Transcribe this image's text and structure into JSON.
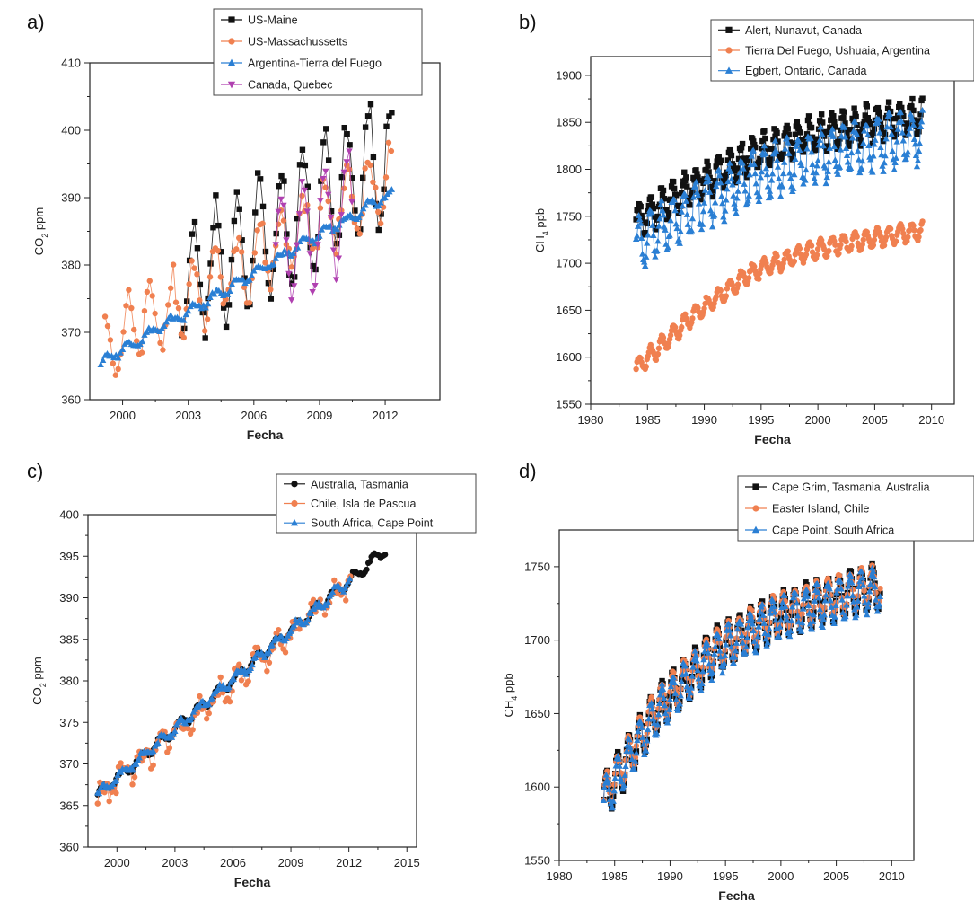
{
  "chart_data": [
    {
      "panel_label": "a)",
      "type": "line",
      "title": "",
      "xlabel": "Fecha",
      "ylabel_main": "CO",
      "ylabel_sub": "2",
      "ylabel_rest": " ppm",
      "xlim": [
        1998.5,
        2014.5
      ],
      "ylim": [
        360,
        410
      ],
      "xticks": [
        2000,
        2003,
        2006,
        2009,
        2012
      ],
      "xtick_labels": [
        "2000",
        "2003",
        "2006",
        "2009",
        "2012"
      ],
      "yticks": [
        360,
        370,
        380,
        390,
        400,
        410
      ],
      "ytick_labels": [
        "360",
        "370",
        "380",
        "390",
        "400",
        "410"
      ],
      "grid": false,
      "legend": "top-right",
      "series": [
        {
          "name": "US-Maine",
          "color": "#111111",
          "marker": "square",
          "start": 2002.7,
          "end": 2012.3,
          "step": 0.12,
          "base": 377,
          "slope": 2.0,
          "amp": 9,
          "noise": 2.2
        },
        {
          "name": "US-Massachussetts",
          "color": "#f08050",
          "marker": "circle",
          "start": 1999.2,
          "end": 2012.3,
          "step": 0.12,
          "base": 368,
          "slope": 1.9,
          "amp": 4.8,
          "noise": 1.8
        },
        {
          "name": "Argentina-Tierra del Fuego",
          "color": "#2a7fd4",
          "marker": "triangle",
          "start": 1999.0,
          "end": 2012.3,
          "step": 0.1,
          "base": 365.5,
          "slope": 1.9,
          "amp": 0.6,
          "noise": 0.4
        },
        {
          "name": "Canada, Quebec",
          "color": "#b040b0",
          "marker": "triangle-down",
          "start": 2007.0,
          "end": 2010.5,
          "step": 0.12,
          "base": 382,
          "slope": 2.0,
          "amp": 8.5,
          "noise": 1.8
        }
      ]
    },
    {
      "panel_label": "b)",
      "type": "line",
      "title": "",
      "xlabel": "Fecha",
      "ylabel_main": "CH",
      "ylabel_sub": "4",
      "ylabel_rest": " ppb",
      "xlim": [
        1980,
        2012
      ],
      "ylim": [
        1550,
        1920
      ],
      "xticks": [
        1980,
        1985,
        1990,
        1995,
        2000,
        2005,
        2010
      ],
      "xtick_labels": [
        "1980",
        "1985",
        "1990",
        "1995",
        "2000",
        "2005",
        "2010"
      ],
      "yticks": [
        1550,
        1600,
        1650,
        1700,
        1750,
        1800,
        1850,
        1900
      ],
      "ytick_labels": [
        "1550",
        "1600",
        "1650",
        "1700",
        "1750",
        "1800",
        "1850",
        "1900"
      ],
      "grid": false,
      "legend": "top-right",
      "series": [
        {
          "name": "Alert, Nunavut, Canada",
          "color": "#111111",
          "marker": "square",
          "start": 1984.0,
          "end": 2009.2,
          "step": 0.08,
          "curve": [
            1745,
            1782,
            1815,
            1836,
            1848,
            1856
          ],
          "amp": 17,
          "noise": 6
        },
        {
          "name": "Tierra Del Fuego, Ushuaia, Argentina",
          "color": "#f08050",
          "marker": "circle",
          "start": 1984.0,
          "end": 2009.2,
          "step": 0.08,
          "curve": [
            1588,
            1645,
            1690,
            1713,
            1725,
            1735
          ],
          "amp": 9,
          "noise": 2
        },
        {
          "name": "Egbert, Ontario, Canada",
          "color": "#2a7fd4",
          "marker": "triangle",
          "start": 1984.0,
          "end": 2009.2,
          "step": 0.08,
          "curve": [
            1720,
            1758,
            1790,
            1812,
            1826,
            1835
          ],
          "amp": 26,
          "noise": 6
        }
      ]
    },
    {
      "panel_label": "c)",
      "type": "line",
      "title": "",
      "xlabel": "Fecha",
      "ylabel_main": "CO",
      "ylabel_sub": "2",
      "ylabel_rest": " ppm",
      "xlim": [
        1998.5,
        2015.5
      ],
      "ylim": [
        360,
        400
      ],
      "xticks": [
        2000,
        2003,
        2006,
        2009,
        2012,
        2015
      ],
      "xtick_labels": [
        "2000",
        "2003",
        "2006",
        "2009",
        "2012",
        "2015"
      ],
      "yticks": [
        360,
        365,
        370,
        375,
        380,
        385,
        390,
        395,
        400
      ],
      "ytick_labels": [
        "360",
        "365",
        "370",
        "375",
        "380",
        "385",
        "390",
        "395",
        "400"
      ],
      "grid": false,
      "legend": "top-right",
      "series": [
        {
          "name": "Australia, Tasmania",
          "color": "#111111",
          "marker": "circle",
          "start": 1999.0,
          "end": 2013.9,
          "step": 0.08,
          "base": 366.3,
          "slope": 1.98,
          "amp": 0.6,
          "noise": 0.2
        },
        {
          "name": "Chile, Isla de Pascua",
          "color": "#f08050",
          "marker": "circle",
          "start": 1999.0,
          "end": 2012.1,
          "step": 0.12,
          "base": 366.0,
          "slope": 1.98,
          "amp": 1.0,
          "noise": 1.2
        },
        {
          "name": "South Africa, Cape Point",
          "color": "#2a7fd4",
          "marker": "triangle",
          "start": 1999.0,
          "end": 2012.1,
          "step": 0.08,
          "base": 366.3,
          "slope": 1.98,
          "amp": 0.5,
          "noise": 0.3
        }
      ]
    },
    {
      "panel_label": "d)",
      "type": "line",
      "title": "",
      "xlabel": "Fecha",
      "ylabel_main": "CH",
      "ylabel_sub": "4",
      "ylabel_rest": " ppb",
      "xlim": [
        1980,
        2012
      ],
      "ylim": [
        1550,
        1775
      ],
      "xticks": [
        1980,
        1985,
        1990,
        1995,
        2000,
        2005,
        2010
      ],
      "xtick_labels": [
        "1980",
        "1985",
        "1990",
        "1995",
        "2000",
        "2005",
        "2010"
      ],
      "yticks": [
        1550,
        1600,
        1650,
        1700,
        1750
      ],
      "ytick_labels": [
        "1550",
        "1600",
        "1650",
        "1700",
        "1750"
      ],
      "grid": false,
      "legend": "top-right",
      "series": [
        {
          "name": "Cape Grim, Tasmania, Australia",
          "color": "#111111",
          "marker": "square",
          "start": 1984.0,
          "end": 2009.0,
          "step": 0.08,
          "curve": [
            1592,
            1655,
            1692,
            1715,
            1727,
            1737
          ],
          "amp": 15,
          "noise": 2
        },
        {
          "name": "Easter Island, Chile",
          "color": "#f08050",
          "marker": "circle",
          "start": 1984.0,
          "end": 2009.0,
          "step": 0.08,
          "curve": [
            1593,
            1656,
            1693,
            1716,
            1728,
            1738
          ],
          "amp": 13,
          "noise": 2
        },
        {
          "name": "Cape Point, South Africa",
          "color": "#2a7fd4",
          "marker": "triangle",
          "start": 1984.0,
          "end": 2009.0,
          "step": 0.08,
          "curve": [
            1590,
            1653,
            1690,
            1713,
            1725,
            1735
          ],
          "amp": 14,
          "noise": 2
        }
      ]
    }
  ]
}
